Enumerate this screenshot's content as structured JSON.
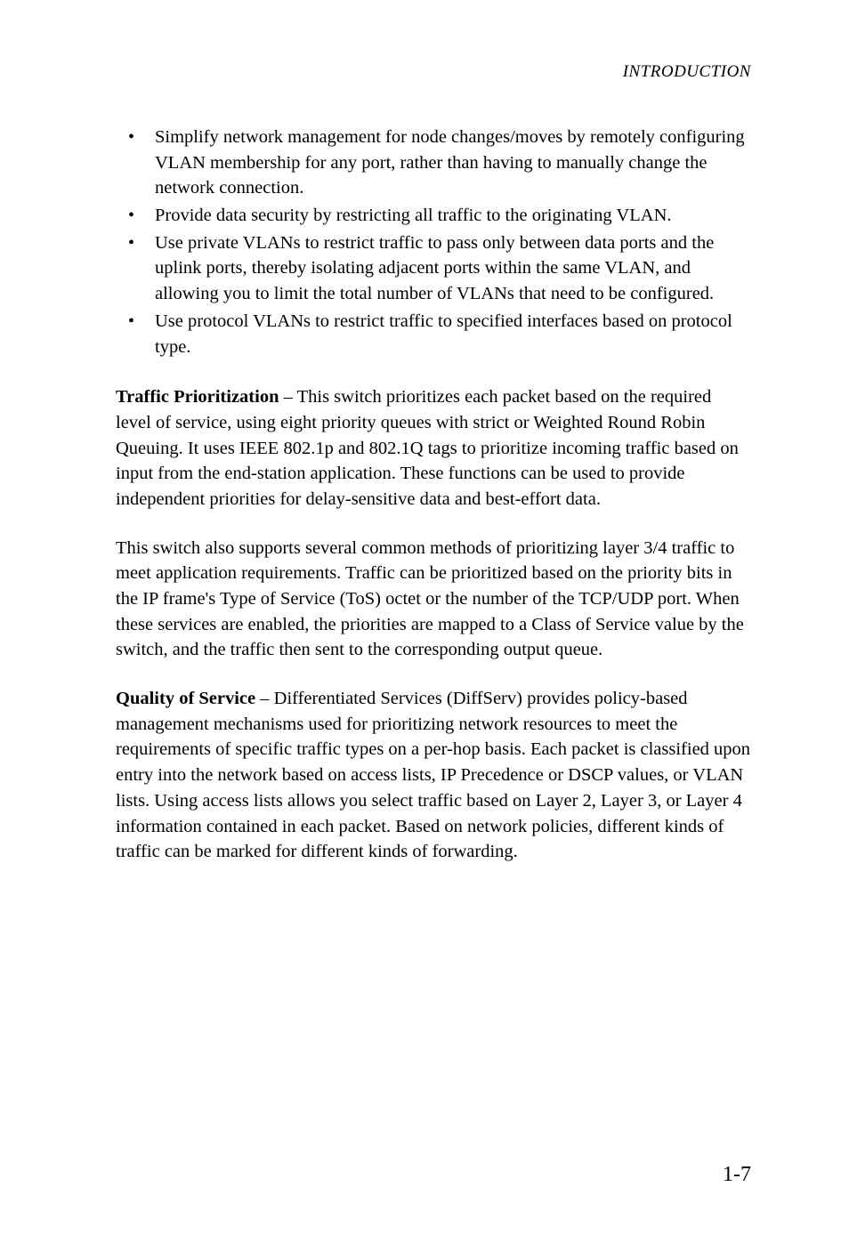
{
  "header": {
    "text": "INTRODUCTION"
  },
  "bullets": {
    "items": [
      "Simplify network management for node changes/moves by remotely configuring VLAN membership for any port, rather than having to manually change the network connection.",
      "Provide data security by restricting all traffic to the originating VLAN.",
      "Use private VLANs to restrict traffic to pass only between data ports and the uplink ports, thereby isolating adjacent ports within the same VLAN, and allowing you to limit the total number of VLANs that need to be configured.",
      "Use protocol VLANs to restrict traffic to specified interfaces based on protocol type."
    ]
  },
  "para1": {
    "bold": "Traffic Prioritization",
    "rest": " – This switch prioritizes each packet based on the required level of service, using eight priority queues with strict or Weighted Round Robin Queuing. It uses IEEE 802.1p and 802.1Q tags to prioritize incoming traffic based on input from the end-station application. These functions can be used to provide independent priorities for delay-sensitive data and best-effort data."
  },
  "para2": {
    "text": "This switch also supports several common methods of prioritizing layer 3/4 traffic to meet application requirements. Traffic can be prioritized based on the priority bits in the IP frame's Type of Service (ToS) octet or the number of the TCP/UDP port. When these services are enabled, the priorities are mapped to a Class of Service value by the switch, and the traffic then sent to the corresponding output queue."
  },
  "para3": {
    "bold": "Quality of Service",
    "rest": " – Differentiated Services (DiffServ) provides policy-based management mechanisms used for prioritizing network resources to meet the requirements of specific traffic types on a per-hop basis. Each packet is classified upon entry into the network based on access lists, IP Precedence or DSCP values, or VLAN lists. Using access lists allows you select traffic based on Layer 2, Layer 3, or Layer 4 information contained in each packet. Based on network policies, different kinds of traffic can be marked for different kinds of forwarding."
  },
  "pageNumber": "1-7"
}
